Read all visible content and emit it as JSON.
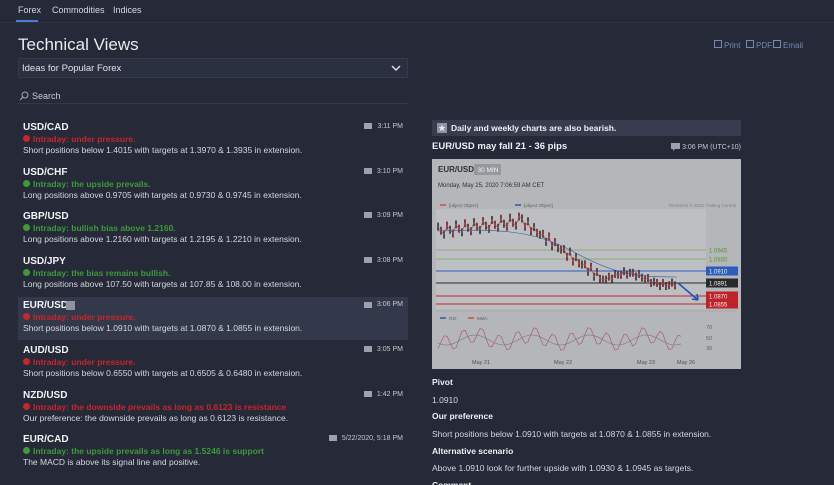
{
  "tabs": [
    "Forex",
    "Commodities",
    "Indices"
  ],
  "active_tab": 0,
  "header": {
    "title": "Technical Views",
    "dropdown": "Ideas for Popular Forex",
    "search": "Search"
  },
  "actions": [
    "Print",
    "PDF",
    "Email"
  ],
  "selected_item": 4,
  "items": [
    {
      "symbol": "USD/CAD",
      "time": "3:11 PM",
      "signal": "Intraday: under pressure.",
      "color": "#c8252c",
      "text": "Short positions below 1.4015 with targets at 1.3970 & 1.3935 in extension."
    },
    {
      "symbol": "USD/CHF",
      "time": "3:10 PM",
      "signal": "Intraday: the upside prevails.",
      "color": "#3f9a3a",
      "text": "Long positions above 0.9705 with targets at 0.9730 & 0.9745 in extension."
    },
    {
      "symbol": "GBP/USD",
      "time": "3:09 PM",
      "signal": "Intraday: bullish bias above 1.2160.",
      "color": "#3f9a3a",
      "text": "Long positions above 1.2160 with targets at 1.2195 & 1.2210 in extension."
    },
    {
      "symbol": "USD/JPY",
      "time": "3:08 PM",
      "signal": "Intraday: the bias remains bullish.",
      "color": "#3f9a3a",
      "text": "Long positions above 107.50 with targets at 107.85 & 108.00 in extension."
    },
    {
      "symbol": "EUR/USD",
      "time": "3:06 PM",
      "signal": "Intraday: under pressure.",
      "color": "#c8252c",
      "text": "Short positions below 1.0910 with targets at 1.0870 & 1.0855 in extension."
    },
    {
      "symbol": "AUD/USD",
      "time": "3:05 PM",
      "signal": "Intraday: under pressure.",
      "color": "#c8252c",
      "text": "Short positions below 0.6550 with targets at 0.6505 & 0.6480 in extension."
    },
    {
      "symbol": "NZD/USD",
      "time": "1:42 PM",
      "signal": "Intraday: the downside prevails as long as 0.6123 is resistance",
      "color": "#c8252c",
      "text": "Our preference: the downside prevails as long as 0.6123 is resistance."
    },
    {
      "symbol": "EUR/CAD",
      "time": "5/22/2020, 5:18 PM",
      "signal": "Intraday: the upside prevails as long as 1.5246 is support",
      "color": "#3f9a3a",
      "text": "The MACD is above its signal line and positive."
    }
  ],
  "detail": {
    "banner": "Daily and weekly charts are also bearish.",
    "title": "EUR/USD may fall 21 - 36 pips",
    "time": "3:06 PM (UTC+10)",
    "chart": {
      "symbol": "EUR/USD",
      "timeframe": "30 MIN",
      "date": "Monday, May 25, 2020 7:06:59 AM CET",
      "legend": [
        {
          "name": "MA 20 + Bollinger Bands",
          "color": "#d9534f"
        },
        {
          "name": "MA 50",
          "color": "#2b5fb8"
        }
      ],
      "credit": "Research © 2020 Trading Central",
      "levels": [
        {
          "label": "1.0945",
          "color": "#5aa03a",
          "boxed": false
        },
        {
          "label": "1.0930",
          "color": "#5aa03a",
          "boxed": false
        },
        {
          "label": "1.0910",
          "color": "#2e63c4",
          "boxed": true
        },
        {
          "label": "1.0891",
          "color": "#2c2c2c",
          "boxed": true
        },
        {
          "label": "1.0870",
          "color": "#c8252c",
          "boxed": true
        },
        {
          "label": "1.0855",
          "color": "#c8252c",
          "boxed": true
        }
      ],
      "indicators": [
        {
          "name": "RSI",
          "color": "#2b5fb8"
        },
        {
          "name": "MMA",
          "color": "#d9534f"
        }
      ],
      "rsi_ticks": [
        "70",
        "50",
        "30"
      ],
      "dates": [
        "May 21",
        "May 22",
        "May 23",
        "May 26"
      ]
    },
    "sections": [
      {
        "heading": "Pivot",
        "text": "1.0910"
      },
      {
        "heading": "Our preference",
        "text": "Short positions below 1.0910 with targets at 1.0870 & 1.0855 in extension."
      },
      {
        "heading": "Alternative scenario",
        "text": "Above 1.0910 look for further upside with 1.0930 & 1.0945 as targets."
      },
      {
        "heading": "Comment"
      }
    ]
  }
}
